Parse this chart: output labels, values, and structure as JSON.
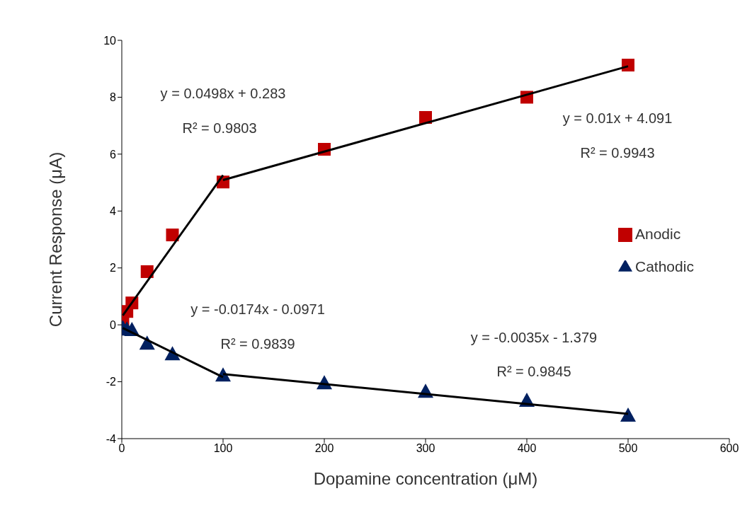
{
  "chart_data": {
    "type": "scatter",
    "xlabel": "Dopamine concentration (μM)",
    "ylabel": "Current Response (μA)",
    "xlim": [
      0,
      600
    ],
    "xticks": [
      0,
      100,
      200,
      300,
      400,
      500,
      600
    ],
    "ylim": [
      -4,
      10
    ],
    "yticks": [
      -4,
      -2,
      0,
      2,
      4,
      6,
      8,
      10
    ],
    "grid": false,
    "legend": "right",
    "series": [
      {
        "name": "Anodic",
        "color": "#c00000",
        "marker": "square",
        "x": [
          1,
          5,
          10,
          25,
          50,
          100,
          200,
          300,
          400,
          500
        ],
        "values": [
          0.2,
          0.47,
          0.77,
          1.87,
          3.16,
          5.02,
          6.17,
          7.29,
          8.0,
          9.13
        ]
      },
      {
        "name": "Cathodic",
        "color": "#002060",
        "marker": "triangle",
        "x": [
          1,
          5,
          10,
          25,
          50,
          100,
          200,
          300,
          400,
          500
        ],
        "values": [
          -0.1,
          -0.15,
          -0.17,
          -0.65,
          -1.02,
          -1.77,
          -2.04,
          -2.34,
          -2.66,
          -3.18
        ]
      },
      {
        "type": "line",
        "color": "#000000",
        "x": [
          1,
          100
        ],
        "values": [
          0.33,
          5.26
        ]
      },
      {
        "type": "line",
        "color": "#000000",
        "x": [
          100,
          500
        ],
        "values": [
          5.09,
          9.09
        ]
      },
      {
        "type": "line",
        "color": "#000000",
        "x": [
          1,
          100
        ],
        "values": [
          -0.11,
          -1.84
        ]
      },
      {
        "type": "line",
        "color": "#000000",
        "x": [
          100,
          500
        ],
        "values": [
          -1.73,
          -3.13
        ]
      }
    ],
    "annotations": [
      "y = 0.0498x + 0.283",
      "R² = 0.9803",
      "y = 0.01x + 4.091",
      "R² = 0.9943",
      "y = -0.0174x - 0.0971",
      "R² = 0.9839",
      "y = -0.0035x - 1.379",
      "R² = 0.9845"
    ]
  }
}
